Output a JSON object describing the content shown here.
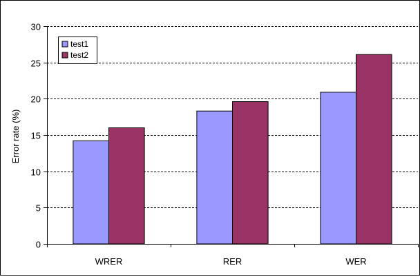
{
  "chart_data": {
    "type": "bar",
    "title": "",
    "xlabel": "",
    "ylabel": "Error rate (%)",
    "categories": [
      "WRER",
      "RER",
      "WER"
    ],
    "series": [
      {
        "name": "test1",
        "values": [
          14.2,
          18.3,
          20.9
        ],
        "color": "#9999ff"
      },
      {
        "name": "test2",
        "values": [
          16.0,
          19.6,
          26.1
        ],
        "color": "#993366"
      }
    ],
    "ylim": [
      0,
      30
    ],
    "yticks": [
      0,
      5,
      10,
      15,
      20,
      25,
      30
    ],
    "grid": true,
    "legend_position": "top-left"
  }
}
